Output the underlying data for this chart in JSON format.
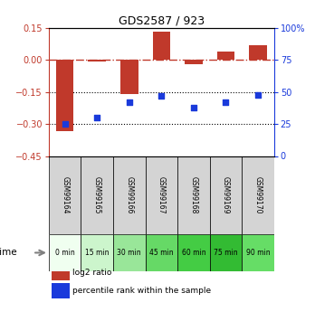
{
  "title": "GDS2587 / 923",
  "samples": [
    "GSM99164",
    "GSM99165",
    "GSM99166",
    "GSM99167",
    "GSM99168",
    "GSM99169",
    "GSM99170"
  ],
  "time_labels": [
    "0 min",
    "15 min",
    "30 min",
    "45 min",
    "60 min",
    "75 min",
    "90 min"
  ],
  "log2_ratio": [
    -0.335,
    -0.005,
    -0.16,
    0.135,
    -0.02,
    0.04,
    0.07
  ],
  "percentile_rank": [
    25,
    30,
    42,
    47,
    38,
    42,
    48
  ],
  "bar_color": "#c0392b",
  "dot_color": "#1a3adb",
  "ylim_left": [
    -0.45,
    0.15
  ],
  "ylim_right": [
    0,
    100
  ],
  "yticks_left": [
    0.15,
    0.0,
    -0.15,
    -0.3,
    -0.45
  ],
  "yticks_right": [
    100,
    75,
    50,
    25,
    0
  ],
  "time_colors": [
    "#f0fff0",
    "#ccf5cc",
    "#99e699",
    "#66d966",
    "#44cc44",
    "#33bb33",
    "#66dd66"
  ],
  "sample_bg_color": "#d4d4d4",
  "legend_items": [
    {
      "label": "log2 ratio",
      "color": "#c0392b"
    },
    {
      "label": "percentile rank within the sample",
      "color": "#1a3adb"
    }
  ]
}
